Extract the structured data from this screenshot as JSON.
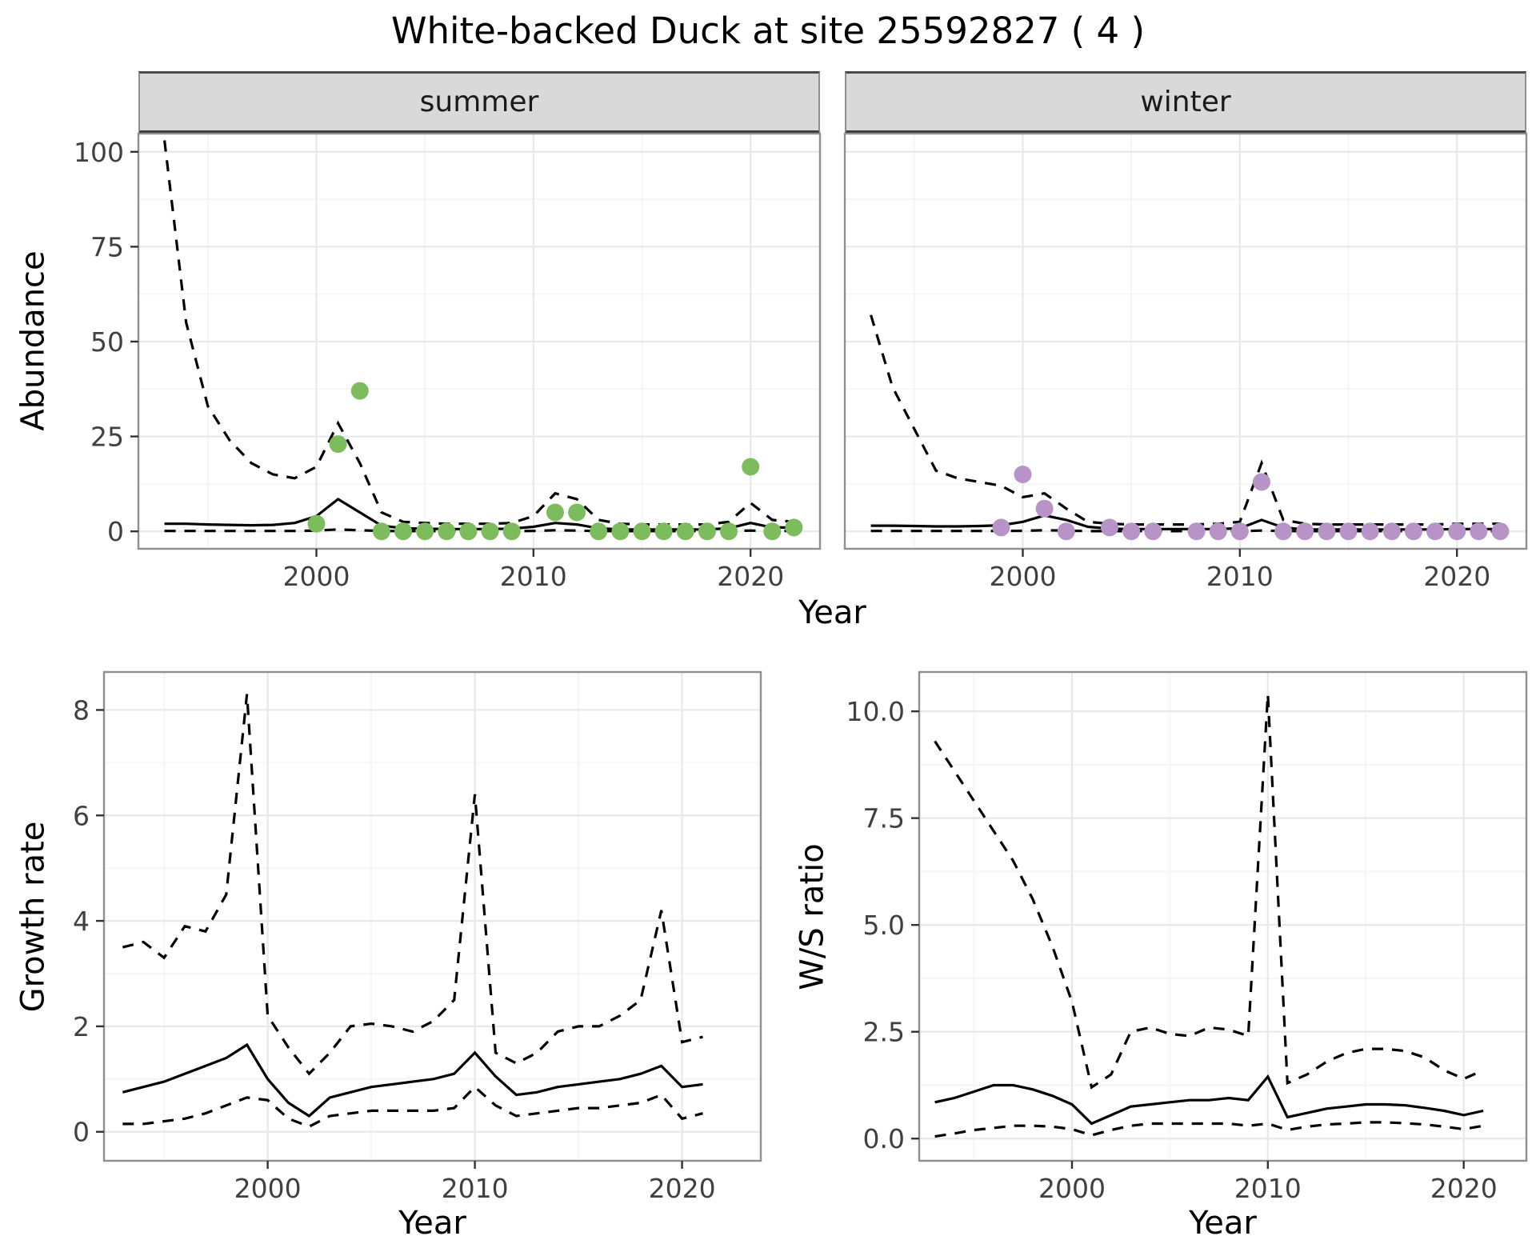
{
  "title": "White-backed Duck at site 25592827 ( 4 )",
  "facets": [
    "summer",
    "winter"
  ],
  "axis_titles": {
    "abundance": "Abundance",
    "growth_rate": "Growth rate",
    "ws_ratio": "W/S ratio",
    "year": "Year"
  },
  "colors": {
    "summer_point": "#7CBC5C",
    "winter_point": "#B793C8",
    "line": "#000000",
    "strip_bg": "#D9D9D9",
    "grid_major": "#E8E8E8",
    "grid_minor": "#F4F4F4",
    "panel_border": "#8F8F8F",
    "tick": "#333333",
    "axis_text": "#404040",
    "title_text": "#000000"
  },
  "chart_data": [
    {
      "id": "abundance_summer",
      "type": "line",
      "facet": "summer",
      "title": "",
      "xlabel": "Year",
      "ylabel": "Abundance",
      "xlim": [
        1991.8,
        2023.2
      ],
      "ylim": [
        -4.6,
        104.8
      ],
      "xtick_values": [
        2000,
        2010,
        2020
      ],
      "xtick_labels": [
        "2000",
        "2010",
        "2020"
      ],
      "ytick_values": [
        0,
        25,
        50,
        75,
        100
      ],
      "ytick_labels": [
        "0",
        "25",
        "50",
        "75",
        "100"
      ],
      "xticks_minor": [
        1995,
        2005,
        2015
      ],
      "yticks_minor": [
        12.5,
        37.5,
        62.5,
        87.5
      ],
      "show_y_axis": true,
      "x": [
        1993,
        1994,
        1995,
        1996,
        1997,
        1998,
        1999,
        2000,
        2001,
        2002,
        2003,
        2004,
        2005,
        2006,
        2007,
        2008,
        2009,
        2010,
        2011,
        2012,
        2013,
        2014,
        2015,
        2016,
        2017,
        2018,
        2019,
        2020,
        2021,
        2022
      ],
      "series": [
        {
          "name": "upper_ci",
          "style": "dashed",
          "values": [
            103,
            55,
            33,
            24,
            18,
            15,
            14,
            17,
            28.5,
            18,
            5,
            2.5,
            2.2,
            2,
            2,
            2,
            2.2,
            4,
            10,
            8.5,
            3,
            2,
            1.8,
            1.8,
            1.8,
            1.8,
            2.5,
            7.5,
            3,
            2.5
          ]
        },
        {
          "name": "fitted_median",
          "style": "solid",
          "values": [
            2,
            2,
            1.8,
            1.7,
            1.6,
            1.7,
            2.2,
            4,
            8.5,
            5,
            1.5,
            0.8,
            0.7,
            0.6,
            0.6,
            0.6,
            0.7,
            1.2,
            2.2,
            1.8,
            0.8,
            0.5,
            0.5,
            0.5,
            0.5,
            0.5,
            0.8,
            2.2,
            1,
            1
          ]
        },
        {
          "name": "lower_ci",
          "style": "dashed",
          "values": [
            0.1,
            0.1,
            0.1,
            0.1,
            0.1,
            0.1,
            0.1,
            0.2,
            0.5,
            0.3,
            0.1,
            0.05,
            0.05,
            0.05,
            0.05,
            0.05,
            0.05,
            0.1,
            0.3,
            0.2,
            0.05,
            0.05,
            0.05,
            0.05,
            0.05,
            0.05,
            0.05,
            0.2,
            0.1,
            0.1
          ]
        }
      ],
      "points": {
        "name": "observed_counts",
        "color_key": "summer_point",
        "x": [
          2000,
          2001,
          2002,
          2003,
          2004,
          2005,
          2006,
          2007,
          2008,
          2009,
          2011,
          2012,
          2013,
          2014,
          2015,
          2016,
          2017,
          2018,
          2019,
          2020,
          2021,
          2022
        ],
        "y": [
          2,
          23,
          37,
          0,
          0,
          0,
          0,
          0,
          0,
          0,
          5,
          5,
          0,
          0,
          0,
          0,
          0,
          0,
          0,
          17,
          0,
          1
        ]
      }
    },
    {
      "id": "abundance_winter",
      "type": "line",
      "facet": "winter",
      "title": "",
      "xlabel": "Year",
      "ylabel": "Abundance",
      "xlim": [
        1991.8,
        2023.2
      ],
      "ylim": [
        -4.6,
        104.8
      ],
      "xtick_values": [
        2000,
        2010,
        2020
      ],
      "xtick_labels": [
        "2000",
        "2010",
        "2020"
      ],
      "ytick_values": [
        0,
        25,
        50,
        75,
        100
      ],
      "ytick_labels": [
        "0",
        "25",
        "50",
        "75",
        "100"
      ],
      "xticks_minor": [
        1995,
        2005,
        2015
      ],
      "yticks_minor": [
        12.5,
        37.5,
        62.5,
        87.5
      ],
      "show_y_axis": false,
      "x": [
        1993,
        1994,
        1995,
        1996,
        1997,
        1998,
        1999,
        2000,
        2001,
        2002,
        2003,
        2004,
        2005,
        2006,
        2007,
        2008,
        2009,
        2010,
        2011,
        2012,
        2013,
        2014,
        2015,
        2016,
        2017,
        2018,
        2019,
        2020,
        2021,
        2022
      ],
      "series": [
        {
          "name": "upper_ci",
          "style": "dashed",
          "values": [
            57,
            38,
            27,
            16,
            14,
            13,
            12,
            9,
            10,
            6,
            2.5,
            2,
            1.8,
            1.8,
            1.8,
            1.8,
            2,
            2.5,
            18,
            3,
            2,
            1.8,
            1.8,
            1.8,
            1.8,
            1.8,
            1.8,
            2,
            2,
            2
          ]
        },
        {
          "name": "fitted_median",
          "style": "solid",
          "values": [
            1.5,
            1.5,
            1.4,
            1.3,
            1.3,
            1.4,
            1.6,
            2.5,
            4.2,
            3,
            1.2,
            0.7,
            0.6,
            0.6,
            0.6,
            0.6,
            0.6,
            0.8,
            3,
            1,
            0.5,
            0.5,
            0.5,
            0.5,
            0.5,
            0.5,
            0.5,
            0.6,
            0.6,
            0.6
          ]
        },
        {
          "name": "lower_ci",
          "style": "dashed",
          "values": [
            0.1,
            0.1,
            0.1,
            0.1,
            0.1,
            0.1,
            0.1,
            0.15,
            0.3,
            0.2,
            0.05,
            0.05,
            0.05,
            0.05,
            0.05,
            0.05,
            0.05,
            0.05,
            0.2,
            0.1,
            0.05,
            0.05,
            0.05,
            0.05,
            0.05,
            0.05,
            0.05,
            0.05,
            0.05,
            0.05
          ]
        }
      ],
      "points": {
        "name": "observed_counts",
        "color_key": "winter_point",
        "x": [
          1999,
          2000,
          2001,
          2002,
          2004,
          2005,
          2006,
          2008,
          2009,
          2010,
          2011,
          2012,
          2013,
          2014,
          2015,
          2016,
          2017,
          2018,
          2019,
          2020,
          2021,
          2022
        ],
        "y": [
          1,
          15,
          6,
          0,
          1,
          0,
          0,
          0,
          0,
          0,
          13,
          0,
          0,
          0,
          0,
          0,
          0,
          0,
          0,
          0,
          0,
          0
        ]
      }
    },
    {
      "id": "growth_rate",
      "type": "line",
      "facet": "",
      "title": "",
      "xlabel": "Year",
      "ylabel": "Growth rate",
      "xlim": [
        1992.1,
        2023.8
      ],
      "ylim": [
        -0.55,
        8.72
      ],
      "xtick_values": [
        2000,
        2010,
        2020
      ],
      "xtick_labels": [
        "2000",
        "2010",
        "2020"
      ],
      "ytick_values": [
        0,
        2,
        4,
        6,
        8
      ],
      "ytick_labels": [
        "0",
        "2",
        "4",
        "6",
        "8"
      ],
      "xticks_minor": [
        1995,
        2005,
        2015
      ],
      "yticks_minor": [
        1,
        3,
        5,
        7
      ],
      "show_y_axis": true,
      "x": [
        1993,
        1994,
        1995,
        1996,
        1997,
        1998,
        1999,
        2000,
        2001,
        2002,
        2003,
        2004,
        2005,
        2006,
        2007,
        2008,
        2009,
        2010,
        2011,
        2012,
        2013,
        2014,
        2015,
        2016,
        2017,
        2018,
        2019,
        2020,
        2021
      ],
      "series": [
        {
          "name": "upper_ci",
          "style": "dashed",
          "values": [
            3.5,
            3.6,
            3.3,
            3.9,
            3.8,
            4.5,
            8.3,
            2.2,
            1.6,
            1.1,
            1.5,
            2.0,
            2.05,
            2.0,
            1.9,
            2.1,
            2.5,
            6.4,
            1.5,
            1.3,
            1.5,
            1.9,
            2.0,
            2.0,
            2.2,
            2.5,
            4.2,
            1.7,
            1.8
          ]
        },
        {
          "name": "fitted_median",
          "style": "solid",
          "values": [
            0.75,
            0.85,
            0.95,
            1.1,
            1.25,
            1.4,
            1.65,
            1.0,
            0.55,
            0.3,
            0.65,
            0.75,
            0.85,
            0.9,
            0.95,
            1.0,
            1.1,
            1.5,
            1.05,
            0.7,
            0.75,
            0.85,
            0.9,
            0.95,
            1.0,
            1.1,
            1.25,
            0.85,
            0.9
          ]
        },
        {
          "name": "lower_ci",
          "style": "dashed",
          "values": [
            0.15,
            0.15,
            0.2,
            0.25,
            0.35,
            0.5,
            0.65,
            0.6,
            0.25,
            0.1,
            0.3,
            0.35,
            0.4,
            0.4,
            0.4,
            0.4,
            0.45,
            0.85,
            0.5,
            0.3,
            0.35,
            0.4,
            0.45,
            0.45,
            0.5,
            0.55,
            0.7,
            0.25,
            0.35
          ]
        }
      ]
    },
    {
      "id": "ws_ratio",
      "type": "line",
      "facet": "",
      "title": "",
      "xlabel": "Year",
      "ylabel": "W/S ratio",
      "xlim": [
        1992.2,
        2023.2
      ],
      "ylim": [
        -0.52,
        10.92
      ],
      "xtick_values": [
        2000,
        2010,
        2020
      ],
      "xtick_labels": [
        "2000",
        "2010",
        "2020"
      ],
      "ytick_values": [
        0,
        2.5,
        5,
        7.5,
        10
      ],
      "ytick_labels": [
        "0.0",
        "2.5",
        "5.0",
        "7.5",
        "10.0"
      ],
      "xticks_minor": [
        1995,
        2005,
        2015
      ],
      "yticks_minor": [
        1.25,
        3.75,
        6.25,
        8.75
      ],
      "show_y_axis": true,
      "x": [
        1993,
        1994,
        1995,
        1996,
        1997,
        1998,
        1999,
        2000,
        2001,
        2002,
        2003,
        2004,
        2005,
        2006,
        2007,
        2008,
        2009,
        2010,
        2011,
        2012,
        2013,
        2014,
        2015,
        2016,
        2017,
        2018,
        2019,
        2020,
        2021
      ],
      "series": [
        {
          "name": "upper_ci",
          "style": "dashed",
          "values": [
            9.3,
            8.6,
            7.9,
            7.2,
            6.5,
            5.6,
            4.5,
            3.2,
            1.2,
            1.5,
            2.5,
            2.6,
            2.45,
            2.4,
            2.6,
            2.55,
            2.4,
            10.4,
            1.3,
            1.5,
            1.8,
            2.0,
            2.1,
            2.1,
            2.05,
            1.9,
            1.6,
            1.4,
            1.6
          ]
        },
        {
          "name": "fitted_median",
          "style": "solid",
          "values": [
            0.85,
            0.95,
            1.1,
            1.25,
            1.25,
            1.15,
            1.0,
            0.8,
            0.35,
            0.55,
            0.75,
            0.8,
            0.85,
            0.9,
            0.9,
            0.95,
            0.9,
            1.45,
            0.5,
            0.6,
            0.7,
            0.75,
            0.8,
            0.8,
            0.78,
            0.72,
            0.65,
            0.55,
            0.65
          ]
        },
        {
          "name": "lower_ci",
          "style": "dashed",
          "values": [
            0.05,
            0.12,
            0.2,
            0.25,
            0.3,
            0.3,
            0.28,
            0.22,
            0.08,
            0.2,
            0.3,
            0.35,
            0.35,
            0.35,
            0.35,
            0.35,
            0.3,
            0.35,
            0.2,
            0.28,
            0.33,
            0.35,
            0.38,
            0.38,
            0.36,
            0.33,
            0.28,
            0.22,
            0.3
          ]
        }
      ]
    }
  ]
}
